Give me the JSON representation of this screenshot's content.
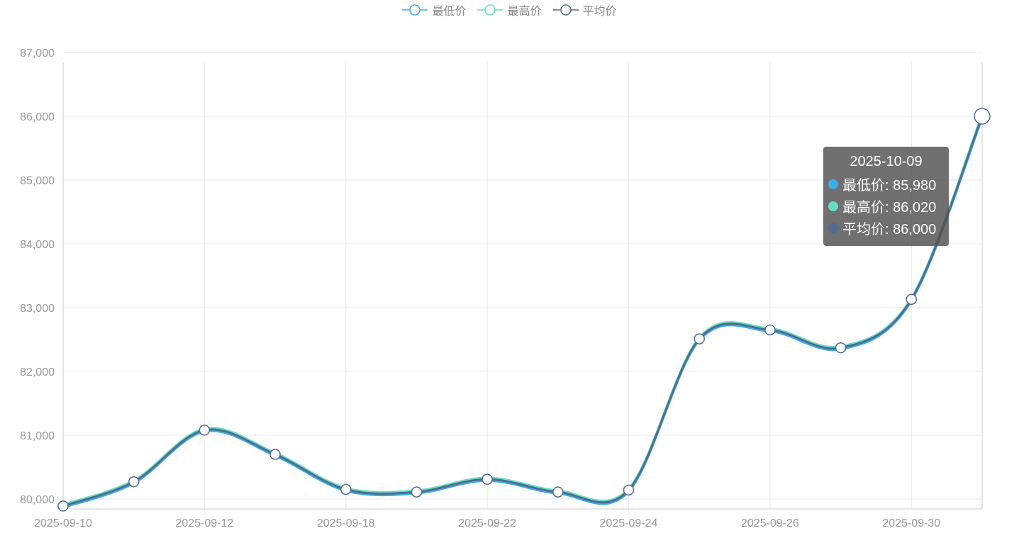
{
  "chart_data": {
    "type": "line",
    "x_tick_labels": [
      "2025-09-10",
      "2025-09-12",
      "2025-09-18",
      "2025-09-22",
      "2025-09-24",
      "2025-09-26",
      "2025-09-30"
    ],
    "y_tick_labels": [
      "80,000",
      "81,000",
      "82,000",
      "83,000",
      "84,000",
      "85,000",
      "86,000",
      "87,000"
    ],
    "ylim": [
      80000,
      87000
    ],
    "grid": true,
    "legend_position": "top-center",
    "points": [
      79890,
      80270,
      81080,
      80700,
      80150,
      80110,
      80310,
      80110,
      80140,
      82510,
      82650,
      82370,
      83130,
      86000
    ],
    "series": [
      {
        "name": "最低价",
        "color": "#3aafe8",
        "values": [
          79880,
          80260,
          81070,
          80690,
          80140,
          80100,
          80300,
          80100,
          80130,
          82500,
          82640,
          82360,
          83120,
          85980
        ]
      },
      {
        "name": "最高价",
        "color": "#64dfc1",
        "values": [
          79900,
          80280,
          81090,
          80710,
          80160,
          80120,
          80320,
          80120,
          80150,
          82520,
          82660,
          82380,
          83140,
          86020
        ]
      },
      {
        "name": "平均价",
        "color": "#516b91",
        "values": [
          79890,
          80270,
          81080,
          80700,
          80150,
          80110,
          80310,
          80110,
          80140,
          82510,
          82650,
          82370,
          83130,
          86000
        ]
      }
    ]
  },
  "tooltip": {
    "title": "2025-10-09",
    "rows": [
      {
        "label": "最低价: 85,980",
        "color": "#3aafe8"
      },
      {
        "label": "最高价: 86,020",
        "color": "#64dfc1"
      },
      {
        "label": "平均价: 86,000",
        "color": "#516b91"
      }
    ]
  }
}
